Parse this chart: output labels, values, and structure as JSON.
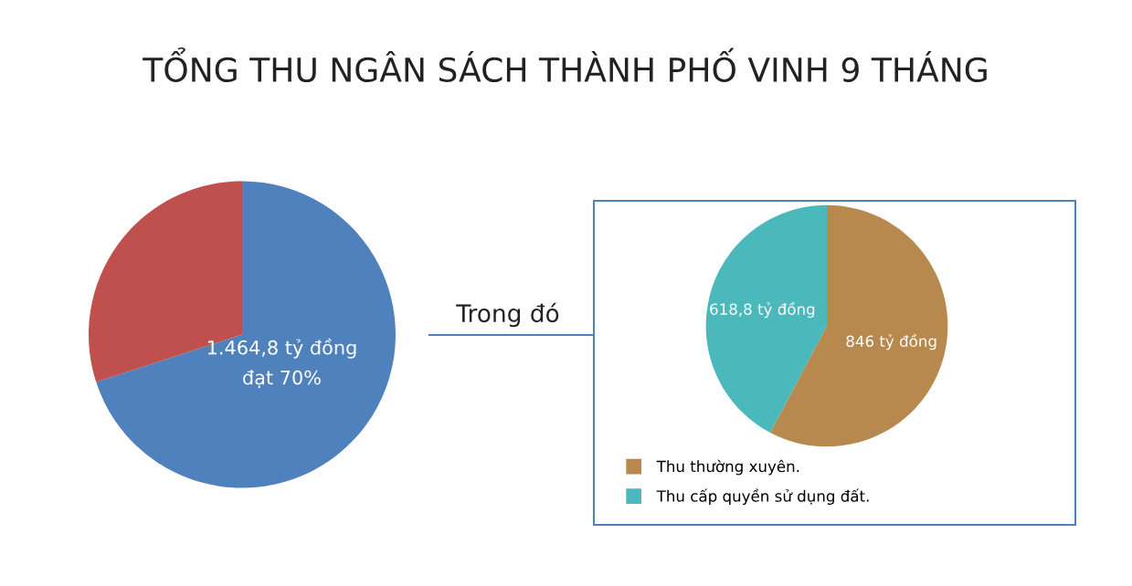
{
  "chart_data": [
    {
      "type": "pie",
      "title": "TỔNG THU NGÂN SÁCH THÀNH PHỐ VINH 9 THÁNG",
      "categories": [
        null,
        null
      ],
      "values": [
        70,
        30
      ],
      "colors": [
        "#4f81bd",
        "#c0504d"
      ],
      "value_labels": [
        "1.464,8 tỷ đồng\nđạt 70%",
        null
      ],
      "legend": false
    },
    {
      "type": "pie",
      "categories": [
        "Thu thường xuyên.",
        "Thu cấp quyền sử dụng đất."
      ],
      "values": [
        846,
        618.8
      ],
      "colors": [
        "#b8894e",
        "#4bb8bc"
      ],
      "value_labels": [
        "846 tỷ đồng",
        "618,8 tỷ đồng"
      ],
      "legend": "bottom left",
      "annotations": [
        "Trong đó"
      ]
    }
  ]
}
